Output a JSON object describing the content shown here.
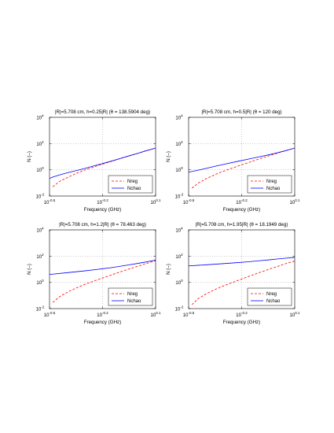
{
  "chart_data": [
    {
      "type": "line",
      "title": "|R|=5.708 cm, h=0.25|R| (θ = 138.5904 deg)",
      "xlabel": "Frequency (GHz)",
      "ylabel": "N (–)",
      "xscale": "log",
      "yscale": "log",
      "xlim": [
        0.3162,
        1.2589
      ],
      "ylim": [
        0.01,
        10000
      ],
      "x_ticks": [
        {
          "base": "10",
          "exp": "-0.5"
        },
        {
          "base": "10",
          "exp": "-0.2"
        },
        {
          "base": "10",
          "exp": "0.1"
        }
      ],
      "y_ticks": [
        {
          "base": "10",
          "exp": "-2"
        },
        {
          "base": "10",
          "exp": "0"
        },
        {
          "base": "10",
          "exp": "2"
        },
        {
          "base": "10",
          "exp": "4"
        }
      ],
      "grid": true,
      "legend": "bottom-right",
      "series": [
        {
          "name": "Nreg",
          "color": "#ff0000",
          "dash": true,
          "x": [
            0.33,
            0.36,
            0.4,
            0.45,
            0.5,
            0.6,
            0.7,
            0.8,
            0.9,
            1.0,
            1.1,
            1.2589
          ],
          "y": [
            0.05,
            0.13,
            0.26,
            0.55,
            0.95,
            2.2,
            4.2,
            7.5,
            12,
            18,
            27,
            45
          ]
        },
        {
          "name": "Nchao",
          "color": "#0000ff",
          "dash": false,
          "x": [
            0.3162,
            0.33,
            0.36,
            0.4,
            0.45,
            0.5,
            0.6,
            0.7,
            0.8,
            0.9,
            1.0,
            1.1,
            1.2589
          ],
          "y": [
            0.22,
            0.28,
            0.4,
            0.6,
            0.88,
            1.25,
            2.5,
            4.4,
            7.5,
            12,
            18,
            27,
            45
          ]
        }
      ]
    },
    {
      "type": "line",
      "title": "|R|=5.708 cm, h=0.5|R| (θ = 120 deg)",
      "xlabel": "Frequency (GHz)",
      "ylabel": "N (–)",
      "xscale": "log",
      "yscale": "log",
      "xlim": [
        0.3162,
        1.2589
      ],
      "ylim": [
        0.01,
        10000
      ],
      "x_ticks": [
        {
          "base": "10",
          "exp": "-0.5"
        },
        {
          "base": "10",
          "exp": "-0.2"
        },
        {
          "base": "10",
          "exp": "0.1"
        }
      ],
      "y_ticks": [
        {
          "base": "10",
          "exp": "-2"
        },
        {
          "base": "10",
          "exp": "0"
        },
        {
          "base": "10",
          "exp": "2"
        },
        {
          "base": "10",
          "exp": "4"
        }
      ],
      "grid": true,
      "legend": "bottom-right",
      "series": [
        {
          "name": "Nreg",
          "color": "#ff0000",
          "dash": true,
          "x": [
            0.33,
            0.36,
            0.4,
            0.45,
            0.5,
            0.6,
            0.7,
            0.8,
            0.9,
            1.0,
            1.1,
            1.2589
          ],
          "y": [
            0.04,
            0.1,
            0.22,
            0.45,
            0.8,
            1.9,
            3.8,
            7.0,
            11.5,
            18,
            27,
            45
          ]
        },
        {
          "name": "Nchao",
          "color": "#0000ff",
          "dash": false,
          "x": [
            0.3162,
            0.36,
            0.4,
            0.45,
            0.5,
            0.6,
            0.7,
            0.8,
            0.9,
            1.0,
            1.1,
            1.2589
          ],
          "y": [
            0.65,
            0.95,
            1.3,
            1.9,
            2.6,
            4.4,
            6.8,
            10,
            14,
            19.5,
            27,
            45
          ]
        }
      ]
    },
    {
      "type": "line",
      "title": "|R|=5.708 cm, h=1.2|R| (θ = 78.463 deg)",
      "xlabel": "Frequency (GHz)",
      "ylabel": "N (–)",
      "xscale": "log",
      "yscale": "log",
      "xlim": [
        0.3162,
        1.2589
      ],
      "ylim": [
        0.01,
        10000
      ],
      "x_ticks": [
        {
          "base": "10",
          "exp": "-0.5"
        },
        {
          "base": "10",
          "exp": "-0.2"
        },
        {
          "base": "10",
          "exp": "0.1"
        }
      ],
      "y_ticks": [
        {
          "base": "10",
          "exp": "-2"
        },
        {
          "base": "10",
          "exp": "0"
        },
        {
          "base": "10",
          "exp": "2"
        },
        {
          "base": "10",
          "exp": "4"
        }
      ],
      "grid": true,
      "legend": "bottom-right",
      "series": [
        {
          "name": "Nreg",
          "color": "#ff0000",
          "dash": true,
          "x": [
            0.33,
            0.36,
            0.4,
            0.45,
            0.5,
            0.6,
            0.7,
            0.8,
            0.9,
            1.0,
            1.1,
            1.2589
          ],
          "y": [
            0.03,
            0.08,
            0.18,
            0.38,
            0.7,
            1.7,
            3.5,
            6.5,
            11,
            17,
            26,
            45
          ]
        },
        {
          "name": "Nchao",
          "color": "#0000ff",
          "dash": false,
          "x": [
            0.3162,
            0.4,
            0.5,
            0.6,
            0.7,
            0.8,
            0.9,
            1.0,
            1.1,
            1.2589
          ],
          "y": [
            4.0,
            5.5,
            7.5,
            10,
            13,
            17,
            22,
            28,
            35,
            50
          ]
        }
      ]
    },
    {
      "type": "line",
      "title": "|R|=5.708 cm, h=1.95|R| (θ = 18.1949 deg)",
      "xlabel": "Frequency (GHz)",
      "ylabel": "N (–)",
      "xscale": "log",
      "yscale": "log",
      "xlim": [
        0.3162,
        1.2589
      ],
      "ylim": [
        0.01,
        10000
      ],
      "x_ticks": [
        {
          "base": "10",
          "exp": "-0.5"
        },
        {
          "base": "10",
          "exp": "-0.2"
        },
        {
          "base": "10",
          "exp": "0.1"
        }
      ],
      "y_ticks": [
        {
          "base": "10",
          "exp": "-2"
        },
        {
          "base": "10",
          "exp": "0"
        },
        {
          "base": "10",
          "exp": "2"
        },
        {
          "base": "10",
          "exp": "4"
        }
      ],
      "grid": true,
      "legend": "bottom-right",
      "series": [
        {
          "name": "Nreg",
          "color": "#ff0000",
          "dash": true,
          "x": [
            0.33,
            0.36,
            0.4,
            0.45,
            0.5,
            0.6,
            0.7,
            0.8,
            0.9,
            1.0,
            1.1,
            1.2589
          ],
          "y": [
            0.02,
            0.06,
            0.14,
            0.3,
            0.55,
            1.4,
            3.0,
            5.8,
            10,
            16,
            25,
            42
          ]
        },
        {
          "name": "Nchao",
          "color": "#0000ff",
          "dash": false,
          "x": [
            0.3162,
            0.4,
            0.5,
            0.6,
            0.7,
            0.8,
            0.9,
            1.0,
            1.1,
            1.2589
          ],
          "y": [
            18,
            22,
            27,
            32,
            38,
            45,
            52,
            60,
            68,
            80
          ]
        }
      ]
    }
  ]
}
